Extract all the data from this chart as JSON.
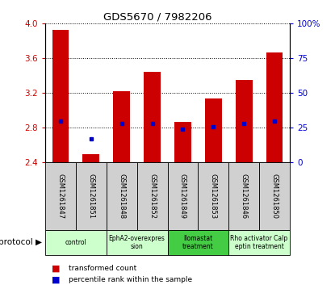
{
  "title": "GDS5670 / 7982206",
  "samples": [
    "GSM1261847",
    "GSM1261851",
    "GSM1261848",
    "GSM1261852",
    "GSM1261849",
    "GSM1261853",
    "GSM1261846",
    "GSM1261850"
  ],
  "transformed_counts": [
    3.93,
    2.5,
    3.22,
    3.44,
    2.87,
    3.14,
    3.35,
    3.67
  ],
  "percentile_ranks_norm": [
    0.3,
    0.17,
    0.28,
    0.28,
    0.24,
    0.26,
    0.28,
    0.3
  ],
  "ylim_left": [
    2.4,
    4.0
  ],
  "ylim_right": [
    0,
    100
  ],
  "yticks_left": [
    2.4,
    2.8,
    3.2,
    3.6,
    4.0
  ],
  "yticks_right": [
    0,
    25,
    50,
    75,
    100
  ],
  "bar_color": "#cc0000",
  "dot_color": "#0000cc",
  "bar_bottom": 2.4,
  "proto_configs": [
    {
      "spans": [
        0,
        2
      ],
      "label": "control",
      "color": "#ccffcc"
    },
    {
      "spans": [
        2,
        4
      ],
      "label": "EphA2-overexpres\nsion",
      "color": "#ccffcc"
    },
    {
      "spans": [
        4,
        6
      ],
      "label": "Ilomastat\ntreatment",
      "color": "#44cc44"
    },
    {
      "spans": [
        6,
        8
      ],
      "label": "Rho activator Calp\neptin treatment",
      "color": "#ccffcc"
    }
  ],
  "protocol_label": "protocol",
  "legend_items": [
    {
      "color": "#cc0000",
      "label": "transformed count"
    },
    {
      "color": "#0000cc",
      "label": "percentile rank within the sample"
    }
  ],
  "tick_label_color_left": "#cc0000",
  "tick_label_color_right": "#0000cc",
  "sample_box_color": "#d0d0d0"
}
